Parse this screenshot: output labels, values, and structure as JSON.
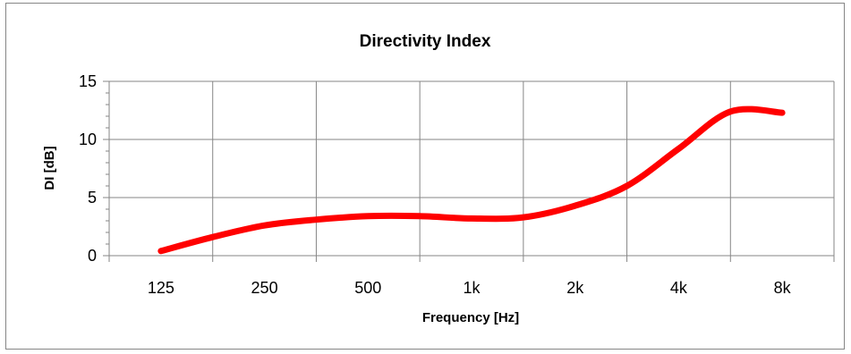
{
  "chart_data": {
    "type": "line",
    "title": "Directivity Index",
    "xlabel": "Frequency [Hz]",
    "ylabel": "DI [dB]",
    "categories": [
      "125",
      "250",
      "500",
      "1k",
      "2k",
      "4k",
      "8k"
    ],
    "ylim": [
      0,
      15
    ],
    "yticks": [
      "0",
      "5",
      "10",
      "15"
    ],
    "y_minor_step": 1,
    "grid": true,
    "legend": "none",
    "series": [
      {
        "color": "#ff0000",
        "x": [
          0,
          0.5,
          1,
          1.5,
          2,
          2.5,
          3,
          3.5,
          4,
          4.5,
          5,
          5.5,
          6
        ],
        "values": [
          0.4,
          1.6,
          2.6,
          3.1,
          3.4,
          3.4,
          3.2,
          3.3,
          4.3,
          6.0,
          9.2,
          12.4,
          12.3
        ]
      }
    ]
  }
}
